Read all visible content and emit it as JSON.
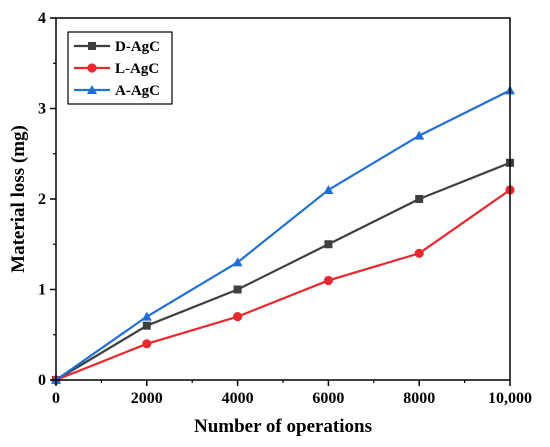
{
  "chart_data": {
    "type": "line",
    "title": "",
    "xlabel": "Number of operations",
    "ylabel": "Material loss (mg)",
    "x": [
      0,
      2000,
      4000,
      6000,
      8000,
      10000
    ],
    "x_tick_labels": [
      "0",
      "2000",
      "4000",
      "6000",
      "8000",
      "10,000"
    ],
    "y_tick_labels": [
      "0",
      "1",
      "2",
      "3",
      "4"
    ],
    "xlim": [
      0,
      10000
    ],
    "ylim": [
      0,
      4
    ],
    "grid": false,
    "legend_position": "top-left",
    "series": [
      {
        "name": "D-AgC",
        "color": "#3f3f3f",
        "marker": "square",
        "values": [
          0,
          0.6,
          1.0,
          1.5,
          2.0,
          2.4
        ]
      },
      {
        "name": "L-AgC",
        "color": "#e8292f",
        "marker": "circle",
        "values": [
          0,
          0.4,
          0.7,
          1.1,
          1.4,
          2.1
        ]
      },
      {
        "name": "A-AgC",
        "color": "#1f6fd6",
        "marker": "triangle",
        "values": [
          0,
          0.7,
          1.3,
          2.1,
          2.7,
          3.2
        ]
      }
    ]
  }
}
